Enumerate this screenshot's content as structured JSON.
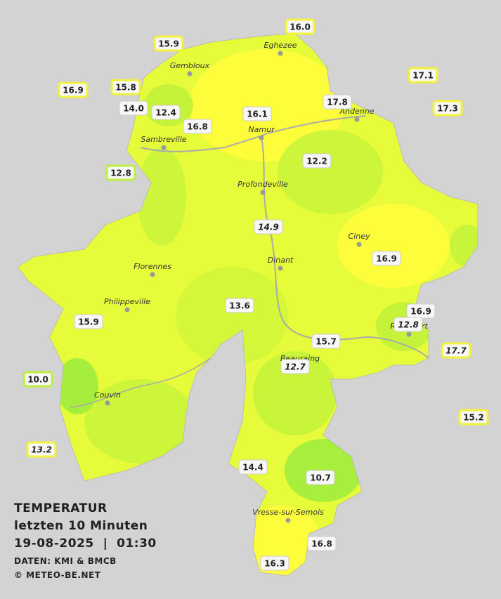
{
  "title": {
    "line1": "TEMPERATUR",
    "line2": "letzten 10 Minuten",
    "line3": "19-08-2025  |  01:30",
    "source": "DATEN: KMI & BMCB",
    "copyright": "© METEO-BE.NET"
  },
  "cities": [
    "Eghezee",
    "Gembloux",
    "Andenne",
    "Namur",
    "Sambreville",
    "Profondeville",
    "Ciney",
    "Dinant",
    "Florennes",
    "Philippeville",
    "Rochefort",
    "Beauraing",
    "Couvin",
    "Vresse-sur-Semois"
  ],
  "stations": [
    "16.0",
    "15.9",
    "16.9",
    "15.8",
    "14.0",
    "12.4",
    "16.8",
    "16.1",
    "17.8",
    "17.1",
    "17.3",
    "12.2",
    "12.8",
    "14.9",
    "16.9",
    "13.6",
    "16.9",
    "12.8",
    "15.9",
    "15.7",
    "17.7",
    "12.7",
    "10.0",
    "15.2",
    "13.2",
    "14.4",
    "10.7",
    "16.8",
    "16.3"
  ]
}
